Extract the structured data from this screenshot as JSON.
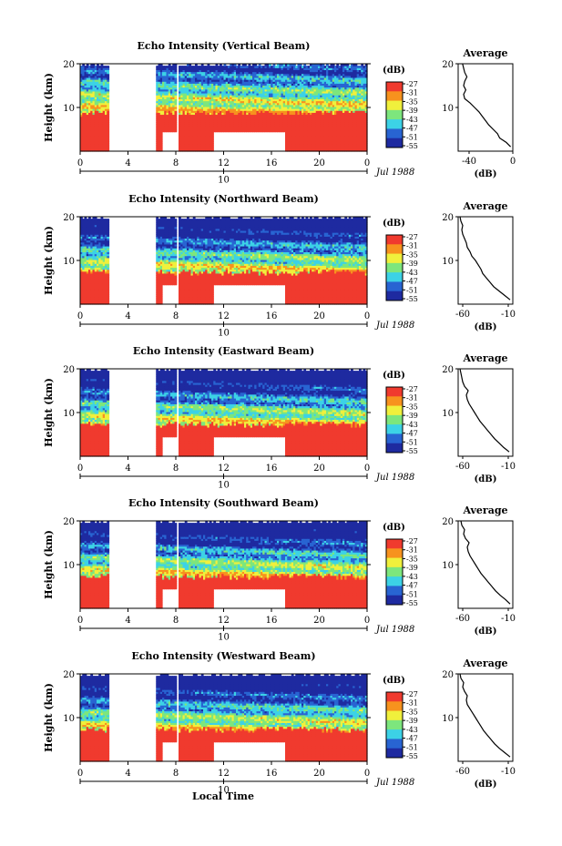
{
  "figure": {
    "xlabel": "Local Time",
    "date_label": "Jul 1988",
    "cbar_unit": "(dB)",
    "avg_title": "Average",
    "avg_xlabel": "(dB)",
    "ylabel": "Height (km)"
  },
  "colors": {
    "red": "#f03a2e",
    "orange": "#f7921e",
    "yellow": "#f0f03c",
    "green": "#7de67d",
    "cyan": "#3cd2e6",
    "blue": "#2864d2",
    "navy": "#1e2aa0"
  },
  "chart_data": [
    {
      "type": "heatmap",
      "title": "Echo Intensity (Vertical Beam)",
      "ylabel": "Height (km)",
      "xlabel": "",
      "x_ticks": [
        "0",
        "4",
        "8",
        "12",
        "16",
        "20",
        "0"
      ],
      "y_ticks": [
        "20",
        "10"
      ],
      "xlim": [
        0,
        24
      ],
      "ylim": [
        0,
        20
      ],
      "date_marker": "10",
      "colorbar": {
        "ticks": [
          "-27",
          "-31",
          "-35",
          "-39",
          "-43",
          "-47",
          "-51",
          "-55"
        ]
      },
      "data_gaps_hours": [
        [
          2.4,
          6.3
        ],
        [
          8.0,
          8.2
        ]
      ],
      "surface_gaps_hours": [
        [
          6.8,
          8.0
        ],
        [
          11.0,
          17.0
        ]
      ],
      "average_profile": {
        "x_ticks": [
          "-40",
          "0"
        ],
        "xlim": [
          -50,
          0
        ],
        "ylim": [
          0,
          20
        ],
        "height_km": [
          1,
          2,
          3,
          4,
          5,
          6,
          7,
          8,
          9,
          10,
          11,
          12,
          13,
          14,
          15,
          16,
          17,
          18,
          19,
          20
        ],
        "db": [
          -2,
          -6,
          -12,
          -14,
          -18,
          -22,
          -25,
          -28,
          -31,
          -35,
          -39,
          -44,
          -45,
          -43,
          -45,
          -44,
          -42,
          -44,
          -45,
          -46
        ]
      }
    },
    {
      "type": "heatmap",
      "title": "Echo Intensity (Northward Beam)",
      "ylabel": "Height (km)",
      "xlabel": "",
      "x_ticks": [
        "0",
        "4",
        "8",
        "12",
        "16",
        "20",
        "0"
      ],
      "y_ticks": [
        "20",
        "10"
      ],
      "xlim": [
        0,
        24
      ],
      "ylim": [
        0,
        20
      ],
      "date_marker": "10",
      "colorbar": {
        "ticks": [
          "-27",
          "-31",
          "-35",
          "-39",
          "-43",
          "-47",
          "-51",
          "-55"
        ]
      },
      "data_gaps_hours": [
        [
          2.4,
          6.3
        ],
        [
          8.0,
          8.2
        ]
      ],
      "surface_gaps_hours": [
        [
          6.8,
          8.0
        ],
        [
          11.0,
          17.0
        ]
      ],
      "average_profile": {
        "x_ticks": [
          "-60",
          "-10"
        ],
        "xlim": [
          -65,
          -5
        ],
        "ylim": [
          0,
          20
        ],
        "height_km": [
          1,
          2,
          3,
          4,
          5,
          6,
          7,
          8,
          9,
          10,
          11,
          12,
          13,
          14,
          15,
          16,
          17,
          18,
          19,
          20
        ],
        "db": [
          -8,
          -14,
          -20,
          -26,
          -30,
          -34,
          -38,
          -40,
          -43,
          -46,
          -50,
          -52,
          -55,
          -56,
          -58,
          -60,
          -61,
          -60,
          -62,
          -63
        ]
      }
    },
    {
      "type": "heatmap",
      "title": "Echo Intensity (Eastward Beam)",
      "ylabel": "Height (km)",
      "xlabel": "",
      "x_ticks": [
        "0",
        "4",
        "8",
        "12",
        "16",
        "20",
        "0"
      ],
      "y_ticks": [
        "20",
        "10"
      ],
      "xlim": [
        0,
        24
      ],
      "ylim": [
        0,
        20
      ],
      "date_marker": "10",
      "colorbar": {
        "ticks": [
          "-27",
          "-31",
          "-35",
          "-39",
          "-43",
          "-47",
          "-51",
          "-55"
        ]
      },
      "data_gaps_hours": [
        [
          2.4,
          6.3
        ],
        [
          8.0,
          8.2
        ]
      ],
      "surface_gaps_hours": [
        [
          6.8,
          8.0
        ],
        [
          11.0,
          17.0
        ]
      ],
      "average_profile": {
        "x_ticks": [
          "-60",
          "-10"
        ],
        "xlim": [
          -65,
          -5
        ],
        "ylim": [
          0,
          20
        ],
        "height_km": [
          1,
          2,
          3,
          4,
          5,
          6,
          7,
          8,
          9,
          10,
          11,
          12,
          13,
          14,
          15,
          16,
          17,
          18,
          19,
          20
        ],
        "db": [
          -9,
          -15,
          -20,
          -25,
          -29,
          -33,
          -37,
          -41,
          -44,
          -47,
          -50,
          -53,
          -55,
          -56,
          -54,
          -58,
          -60,
          -61,
          -62,
          -63
        ]
      }
    },
    {
      "type": "heatmap",
      "title": "Echo Intensity (Southward Beam)",
      "ylabel": "Height (km)",
      "xlabel": "",
      "x_ticks": [
        "0",
        "4",
        "8",
        "12",
        "16",
        "20",
        "0"
      ],
      "y_ticks": [
        "20",
        "10"
      ],
      "xlim": [
        0,
        24
      ],
      "ylim": [
        0,
        20
      ],
      "date_marker": "10",
      "colorbar": {
        "ticks": [
          "-27",
          "-31",
          "-35",
          "-39",
          "-43",
          "-47",
          "-51",
          "-55"
        ]
      },
      "data_gaps_hours": [
        [
          2.4,
          6.3
        ],
        [
          8.0,
          8.2
        ]
      ],
      "surface_gaps_hours": [
        [
          6.8,
          8.0
        ],
        [
          11.0,
          17.0
        ]
      ],
      "average_profile": {
        "x_ticks": [
          "-60",
          "-10"
        ],
        "xlim": [
          -65,
          -5
        ],
        "ylim": [
          0,
          20
        ],
        "height_km": [
          1,
          2,
          3,
          4,
          5,
          6,
          7,
          8,
          9,
          10,
          11,
          12,
          13,
          14,
          15,
          16,
          17,
          18,
          19,
          20
        ],
        "db": [
          -8,
          -13,
          -19,
          -24,
          -28,
          -32,
          -36,
          -40,
          -43,
          -46,
          -49,
          -52,
          -54,
          -55,
          -53,
          -57,
          -59,
          -58,
          -61,
          -62
        ]
      }
    },
    {
      "type": "heatmap",
      "title": "Echo Intensity (Westward Beam)",
      "ylabel": "Height (km)",
      "xlabel": "Local Time",
      "x_ticks": [
        "0",
        "4",
        "8",
        "12",
        "16",
        "20",
        "0"
      ],
      "y_ticks": [
        "20",
        "10"
      ],
      "xlim": [
        0,
        24
      ],
      "ylim": [
        0,
        20
      ],
      "date_marker": "10",
      "colorbar": {
        "ticks": [
          "-27",
          "-31",
          "-35",
          "-39",
          "-43",
          "-47",
          "-51",
          "-55"
        ]
      },
      "data_gaps_hours": [
        [
          2.4,
          6.3
        ],
        [
          8.0,
          8.2
        ]
      ],
      "surface_gaps_hours": [
        [
          6.8,
          8.0
        ],
        [
          11.0,
          17.0
        ]
      ],
      "average_profile": {
        "x_ticks": [
          "-60",
          "-10"
        ],
        "xlim": [
          -65,
          -5
        ],
        "ylim": [
          0,
          20
        ],
        "height_km": [
          1,
          2,
          3,
          4,
          5,
          6,
          7,
          8,
          9,
          10,
          11,
          12,
          13,
          14,
          15,
          16,
          17,
          18,
          19,
          20
        ],
        "db": [
          -8,
          -14,
          -20,
          -25,
          -29,
          -33,
          -37,
          -40,
          -43,
          -46,
          -49,
          -52,
          -55,
          -56,
          -55,
          -58,
          -60,
          -59,
          -62,
          -63
        ]
      }
    }
  ]
}
